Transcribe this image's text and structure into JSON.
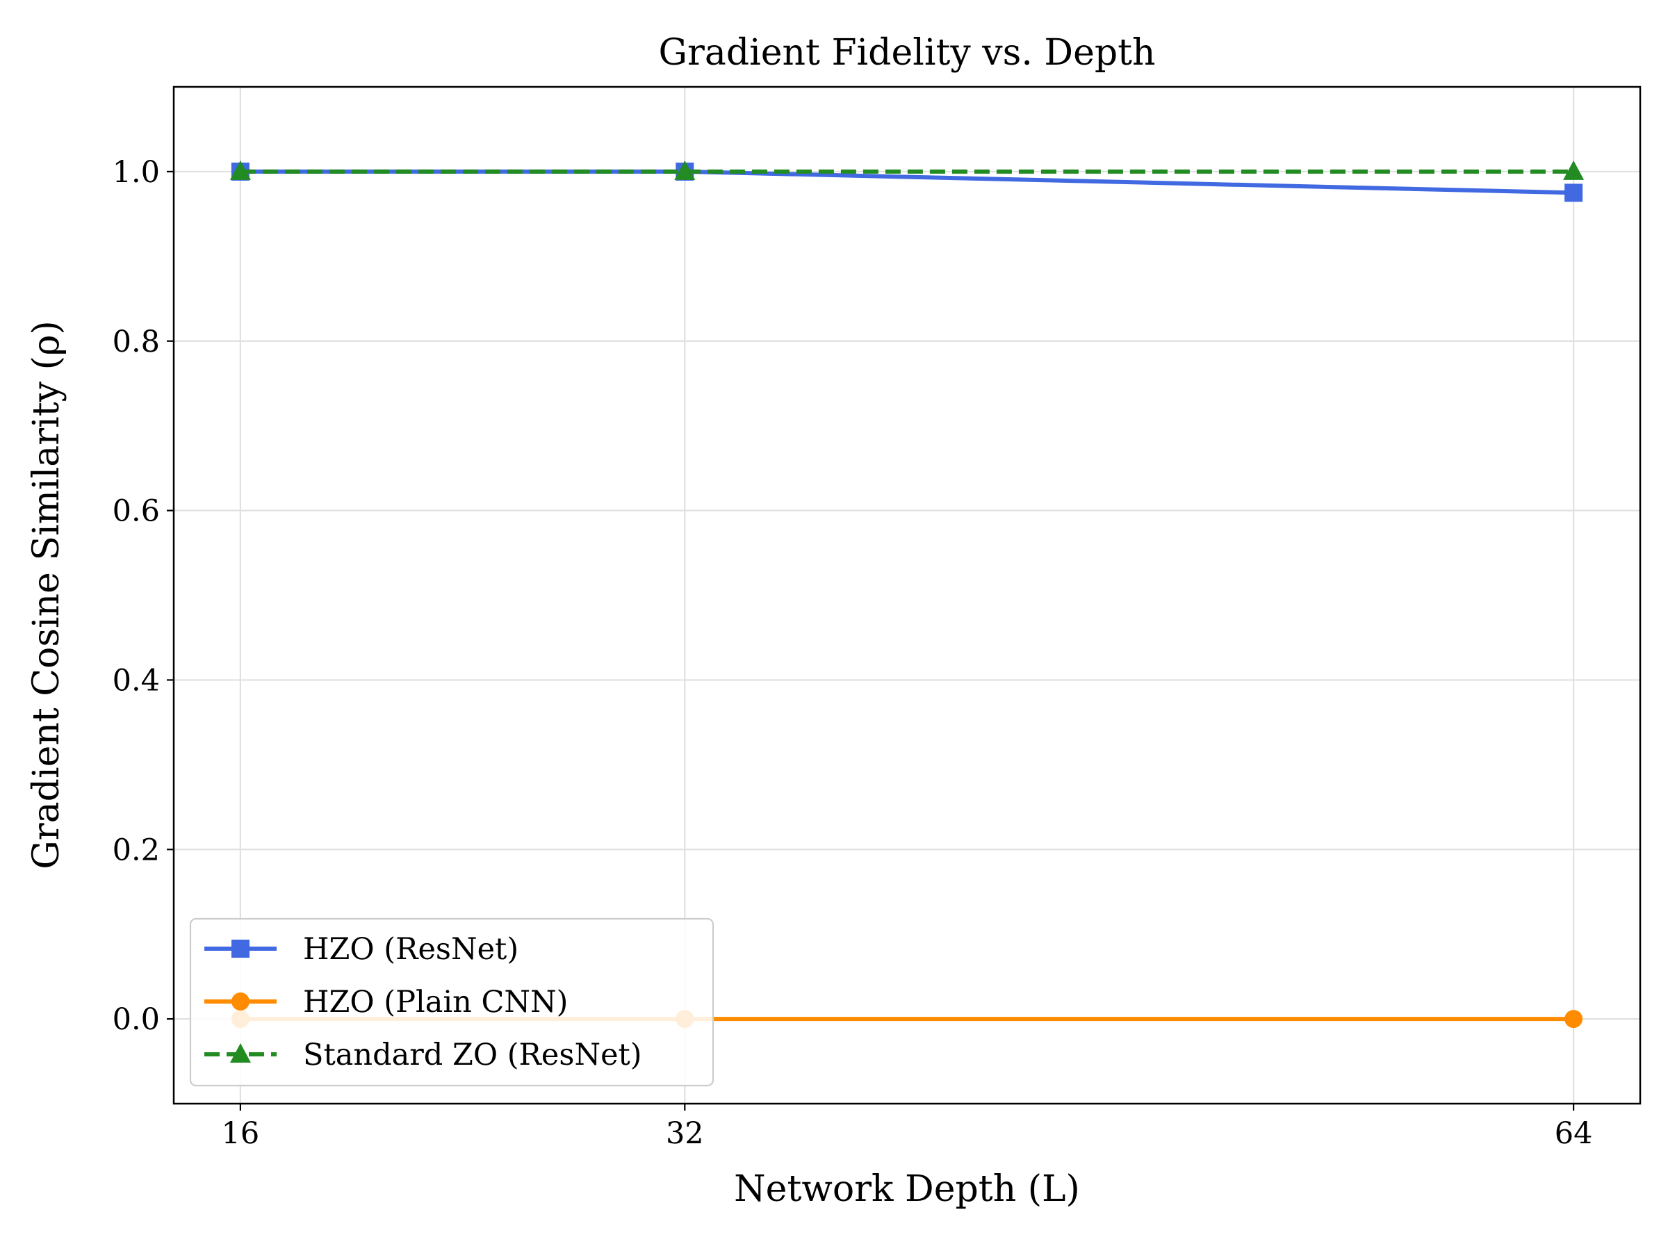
{
  "chart_data": {
    "type": "line",
    "title": "Gradient Fidelity vs. Depth",
    "xlabel": "Network Depth (L)",
    "ylabel": "Gradient Cosine Similarity (ρ)",
    "x": [
      16,
      32,
      64
    ],
    "xticks": [
      "16",
      "32",
      "64"
    ],
    "yticks": [
      "0.0",
      "0.2",
      "0.4",
      "0.6",
      "0.8",
      "1.0"
    ],
    "ytick_values": [
      0.0,
      0.2,
      0.4,
      0.6,
      0.8,
      1.0
    ],
    "xlim": [
      13.6,
      66.4
    ],
    "ylim": [
      -0.1,
      1.1
    ],
    "grid": true,
    "legend_position": "lower-left",
    "series": [
      {
        "name": "HZO (ResNet)",
        "values": [
          1.0,
          1.0,
          0.975
        ],
        "color": "#4169e1",
        "marker": "square",
        "linestyle": "solid"
      },
      {
        "name": "HZO (Plain CNN)",
        "values": [
          0.0,
          0.0,
          0.0
        ],
        "color": "#ff8c00",
        "marker": "circle",
        "linestyle": "solid"
      },
      {
        "name": "Standard ZO (ResNet)",
        "values": [
          1.0,
          1.0,
          1.0
        ],
        "color": "#228b22",
        "marker": "triangle",
        "linestyle": "dashed"
      }
    ]
  }
}
